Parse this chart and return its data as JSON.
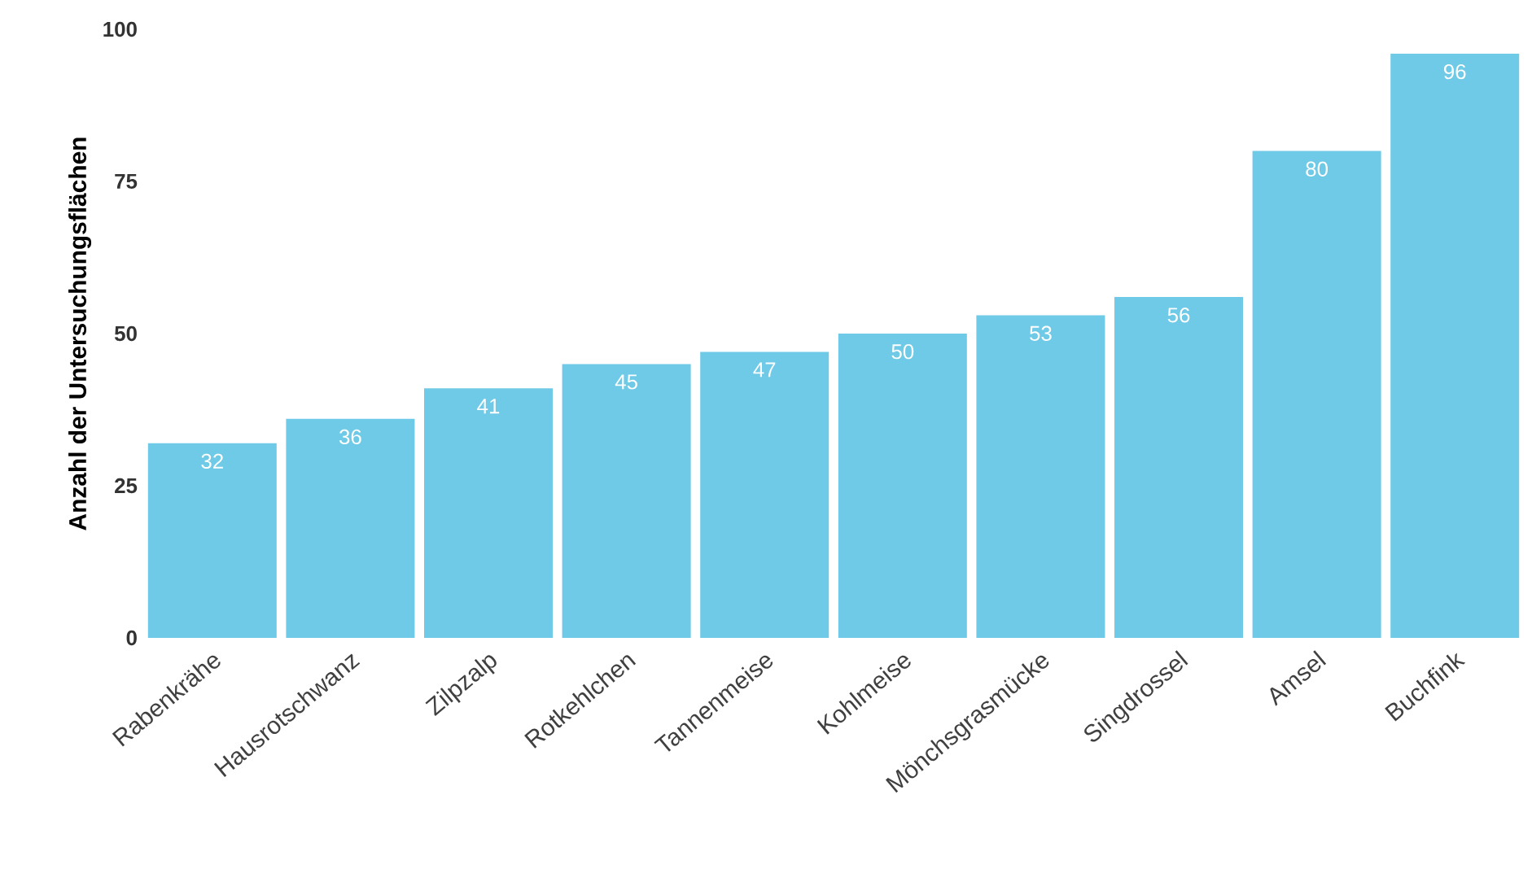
{
  "chart_data": {
    "type": "bar",
    "ylabel": "Anzahl der Untersuchungsflächen",
    "categories": [
      "Rabenkrähe",
      "Hausrotschwanz",
      "Zilpzalp",
      "Rotkehlchen",
      "Tannenmeise",
      "Kohlmeise",
      "Mönchsgrasmücke",
      "Singdrossel",
      "Amsel",
      "Buchfink"
    ],
    "values": [
      32,
      36,
      41,
      45,
      47,
      50,
      53,
      56,
      80,
      96
    ],
    "color": "#6ecae6",
    "data_labels": true,
    "ylim": [
      0,
      100
    ],
    "yticks": [
      0,
      25,
      50,
      75,
      100
    ]
  }
}
